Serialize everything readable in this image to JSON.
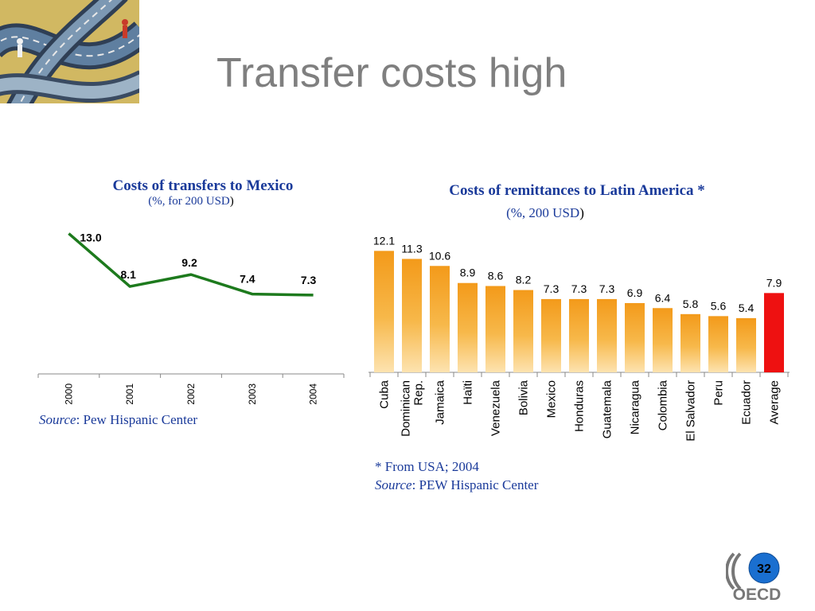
{
  "slide": {
    "title": "Transfer costs high",
    "page_number": "32",
    "logo_text": "OECD"
  },
  "colors": {
    "line": "#1d7a1d",
    "bar": "#f5a623",
    "bar_average": "#ee1111",
    "title_blue": "#1a3a9a",
    "title_grey": "#7f7f7f"
  },
  "left_chart": {
    "title": "Costs of transfers to Mexico",
    "subtitle": "(%, for 200 USD",
    "subtitle_close": ")",
    "source_label": "Source",
    "source_text": ": Pew Hispanic Center"
  },
  "right_chart": {
    "title": "Costs of remittances to Latin America *",
    "subtitle": "(%, 200 USD",
    "subtitle_close": ")",
    "footnote": "* From USA; 2004",
    "source_label": "Source",
    "source_text": ": PEW Hispanic Center"
  },
  "chart_data": [
    {
      "type": "line",
      "title": "Costs of transfers to Mexico",
      "x": [
        "2000",
        "2001",
        "2002",
        "2003",
        "2004"
      ],
      "values": [
        13.0,
        8.1,
        9.2,
        7.4,
        7.3
      ],
      "data_labels": [
        "13.0",
        "8.1",
        "9.2",
        "7.4",
        "7.3"
      ],
      "ylim": [
        0,
        14
      ],
      "grid": false,
      "legend": "none"
    },
    {
      "type": "bar",
      "title": "Costs of remittances to Latin America *",
      "categories": [
        "Cuba",
        "Dominican Rep.",
        "Jamaica",
        "Haïti",
        "Venezuela",
        "Bolivia",
        "Mexico",
        "Honduras",
        "Guatemala",
        "Nicaragua",
        "Colombia",
        "El Salvador",
        "Peru",
        "Ecuador",
        "Average"
      ],
      "category_lines": [
        [
          "Cuba"
        ],
        [
          "Dominican",
          "Rep."
        ],
        [
          "Jamaica"
        ],
        [
          "Haïti"
        ],
        [
          "Venezuela"
        ],
        [
          "Bolivia"
        ],
        [
          "Mexico"
        ],
        [
          "Honduras"
        ],
        [
          "Guatemala"
        ],
        [
          "Nicaragua"
        ],
        [
          "Colombia"
        ],
        [
          "El Salvador"
        ],
        [
          "Peru"
        ],
        [
          "Ecuador"
        ],
        [
          "Average"
        ]
      ],
      "values": [
        12.1,
        11.3,
        10.6,
        8.9,
        8.6,
        8.2,
        7.3,
        7.3,
        7.3,
        6.9,
        6.4,
        5.8,
        5.6,
        5.4,
        7.9
      ],
      "data_labels": [
        "12.1",
        "11.3",
        "10.6",
        "8.9",
        "8.6",
        "8.2",
        "7.3",
        "7.3",
        "7.3",
        "6.9",
        "6.4",
        "5.8",
        "5.6",
        "5.4",
        "7.9"
      ],
      "highlight_index": 14,
      "ylim": [
        0,
        13
      ],
      "grid": false,
      "legend": "none"
    }
  ]
}
